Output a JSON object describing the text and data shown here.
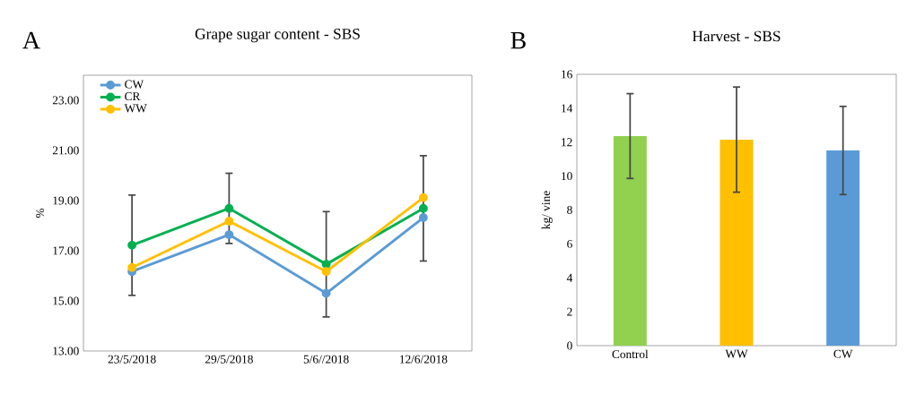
{
  "chart_data": [
    {
      "type": "line",
      "title": "Grape sugar content - SBS",
      "ylabel": "%",
      "annotations": [
        "A"
      ],
      "categories": [
        "23/5/2018",
        "29/5/2018",
        "5/6//2018",
        "12/6/2018"
      ],
      "series": [
        {
          "name": "CW",
          "color": "#5b9bd5",
          "values": [
            16.17,
            17.64,
            15.3,
            18.32
          ]
        },
        {
          "name": "CR",
          "color": "#00b050",
          "values": [
            17.22,
            18.69,
            16.46,
            18.69
          ],
          "errors": [
            2.0,
            1.4,
            2.1,
            2.1
          ]
        },
        {
          "name": "WW",
          "color": "#ffc000",
          "values": [
            16.33,
            18.18,
            16.17,
            19.12
          ]
        }
      ],
      "ylim": [
        13,
        24
      ],
      "yticks": [
        {
          "value": 13,
          "label": "13.00"
        },
        {
          "value": 15,
          "label": "15.00"
        },
        {
          "value": 17,
          "label": "17.00"
        },
        {
          "value": 19,
          "label": "19.00"
        },
        {
          "value": 21,
          "label": "21.00"
        },
        {
          "value": 23,
          "label": "23.00"
        }
      ],
      "marker": "circle",
      "line_style": "solid",
      "legend": "top left",
      "grid": false
    },
    {
      "type": "bar",
      "title": "Harvest - SBS",
      "ylabel": "kg/ vine",
      "annotations": [
        "B"
      ],
      "categories": [
        "Control",
        "WW",
        "CW"
      ],
      "values": [
        12.36,
        12.15,
        11.51
      ],
      "errors": [
        2.5,
        3.1,
        2.6
      ],
      "colors": [
        "#92d050",
        "#ffc000",
        "#5b9bd5"
      ],
      "ylim": [
        0,
        16
      ],
      "yticks": [
        0,
        2,
        4,
        6,
        8,
        10,
        12,
        14,
        16
      ],
      "grid": false
    }
  ]
}
